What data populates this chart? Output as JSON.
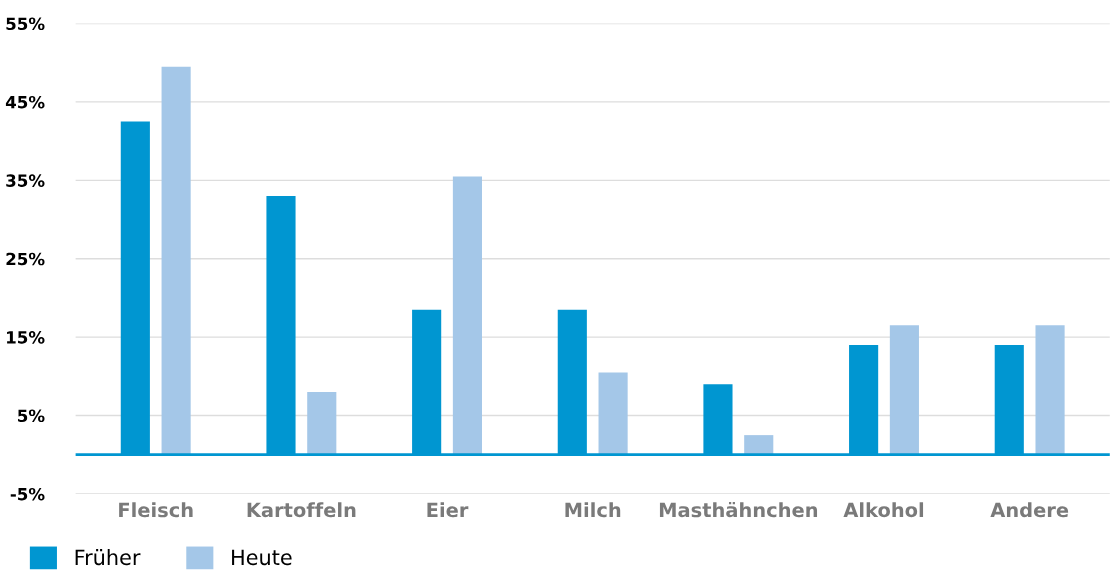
{
  "chart_data": {
    "type": "bar",
    "categories": [
      "Fleisch",
      "Kartoffeln",
      "Eier",
      "Milch",
      "Masthähnchen",
      "Alkohol",
      "Andere"
    ],
    "series": [
      {
        "name": "Früher",
        "color": "#0096d1",
        "values": [
          42.5,
          33,
          18.5,
          18.5,
          9,
          14,
          14
        ]
      },
      {
        "name": "Heute",
        "color": "#a4c7e8",
        "values": [
          49.5,
          8,
          35.5,
          10.5,
          2.5,
          16.5,
          16.5
        ]
      }
    ],
    "ylim": [
      -5,
      55
    ],
    "yticks": [
      {
        "value": -5,
        "label": "-5%"
      },
      {
        "value": 5,
        "label": "5%"
      },
      {
        "value": 15,
        "label": "15%"
      },
      {
        "value": 25,
        "label": "25%"
      },
      {
        "value": 35,
        "label": "35%"
      },
      {
        "value": 45,
        "label": "45%"
      },
      {
        "value": 55,
        "label": "55%"
      }
    ],
    "ref_lines": [
      {
        "axis": "y",
        "value": 0,
        "color": "#0096d1"
      }
    ],
    "grid": "y",
    "legend": "bottom left"
  }
}
